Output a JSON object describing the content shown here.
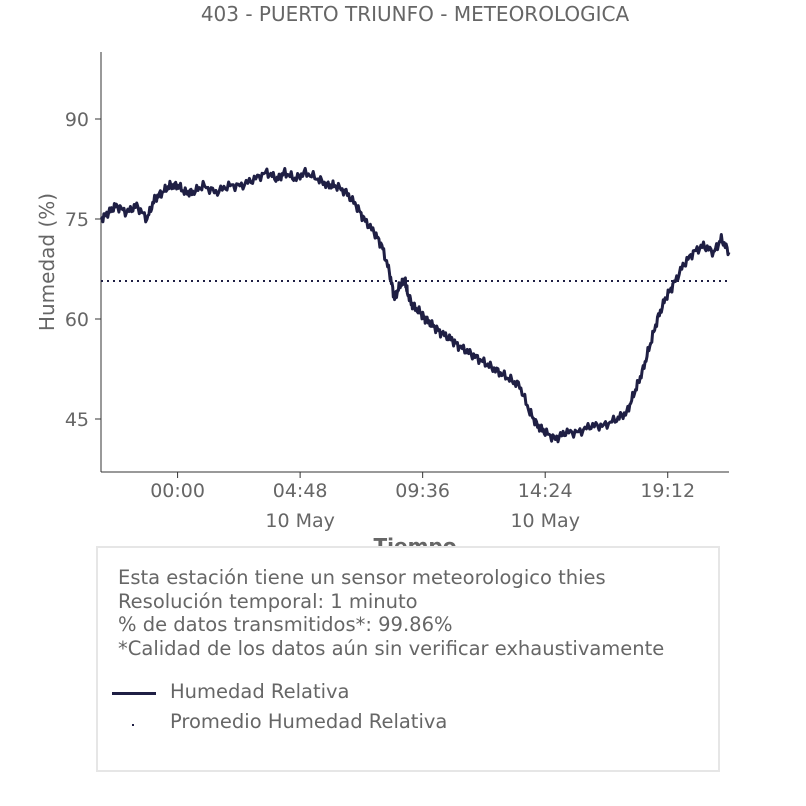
{
  "title": "403 - PUERTO TRIUNFO - METEOROLOGICA",
  "info": {
    "lines": [
      "Esta estación tiene un sensor meteorologico thies",
      "Resolución temporal: 1 minuto",
      "% de datos transmitidos*: 99.86%",
      "*Calidad de los datos aún sin verificar exhaustivamente"
    ]
  },
  "colors": {
    "series": "#1f1f44",
    "axis": "#333333",
    "text": "#666666",
    "box_border": "#e6e6e6"
  },
  "chart_data": {
    "type": "line",
    "title": "403 - PUERTO TRIUNFO - METEOROLOGICA",
    "xlabel": "Tiempo",
    "ylabel": "Humedad (%)",
    "ylim": [
      37,
      100
    ],
    "yticks": [
      45,
      60,
      75,
      90
    ],
    "xlim_hours": [
      -3,
      21.6
    ],
    "xticks": [
      {
        "label": "00:00",
        "sub": ""
      },
      {
        "label": "04:48",
        "sub": "10 May"
      },
      {
        "label": "09:36",
        "sub": ""
      },
      {
        "label": "14:24",
        "sub": "10 May"
      },
      {
        "label": "19:12",
        "sub": ""
      }
    ],
    "xtick_hours": [
      0,
      4.8,
      9.6,
      14.4,
      19.2
    ],
    "grid": false,
    "series": [
      {
        "name": "Humedad Relativa",
        "style": "solid",
        "x_hours": [
          -3.0,
          -2.7,
          -2.4,
          -2.0,
          -1.6,
          -1.2,
          -0.9,
          -0.6,
          -0.3,
          0.0,
          0.3,
          0.6,
          1.0,
          1.5,
          2.0,
          2.5,
          3.0,
          3.5,
          3.9,
          4.2,
          4.6,
          5.0,
          5.5,
          5.9,
          6.2,
          6.6,
          7.0,
          7.3,
          7.7,
          8.0,
          8.3,
          8.5,
          8.7,
          8.9,
          9.0,
          9.2,
          9.5,
          9.7,
          10.0,
          10.3,
          10.7,
          11.0,
          11.4,
          11.8,
          12.2,
          12.6,
          13.0,
          13.4,
          13.8,
          14.1,
          14.4,
          14.8,
          15.2,
          15.7,
          16.2,
          16.7,
          17.2,
          17.6,
          17.9,
          18.2,
          18.5,
          18.8,
          19.1,
          19.4,
          19.8,
          20.2,
          20.6,
          21.0,
          21.3,
          21.6
        ],
        "y": [
          75,
          76,
          77,
          76,
          77,
          75,
          78,
          79,
          80,
          80,
          79,
          79,
          80,
          79,
          80,
          80,
          81,
          82,
          81,
          82,
          81,
          82,
          81,
          80,
          80,
          79,
          77,
          75,
          73,
          71,
          67,
          63,
          65,
          66,
          64,
          62,
          61,
          60,
          59,
          58,
          57,
          56,
          55,
          54,
          53,
          52,
          51,
          50,
          46,
          44,
          43,
          42,
          43,
          43,
          44,
          44,
          45,
          46,
          49,
          52,
          56,
          60,
          63,
          65,
          68,
          70,
          71,
          70,
          72,
          70
        ]
      },
      {
        "name": "Promedio Humedad Relativa",
        "style": "dotted",
        "constant": 65.7
      }
    ]
  }
}
